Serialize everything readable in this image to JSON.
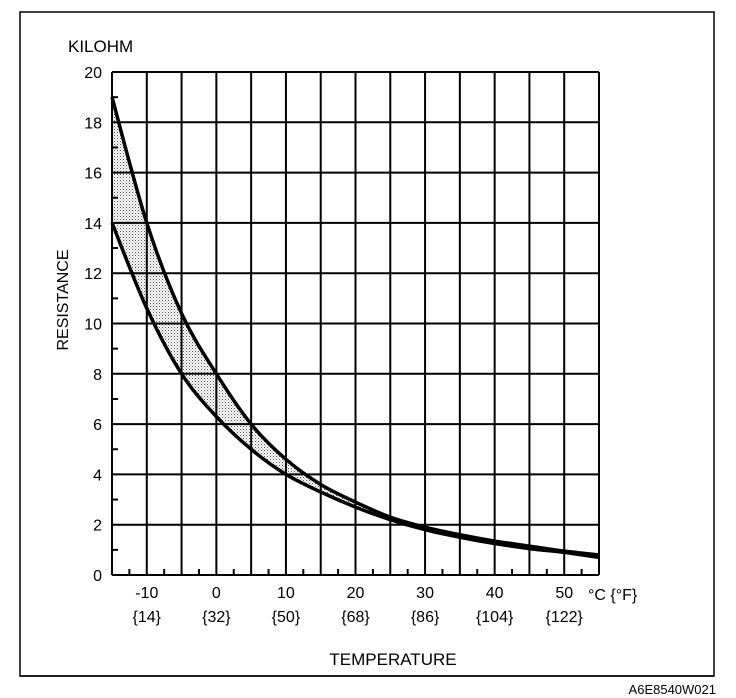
{
  "chart_data": {
    "type": "line",
    "title": "",
    "ylabel": "RESISTANCE",
    "yunit": "KILOHM",
    "xlabel": "TEMPERATURE",
    "xunit": "°C {°F}",
    "xlim": [
      -15,
      55
    ],
    "ylim": [
      0,
      20
    ],
    "grid": true,
    "x_ticks": [
      {
        "c": "-10",
        "f": "{14}"
      },
      {
        "c": "0",
        "f": "{32}"
      },
      {
        "c": "10",
        "f": "{50}"
      },
      {
        "c": "20",
        "f": "{68}"
      },
      {
        "c": "30",
        "f": "{86}"
      },
      {
        "c": "40",
        "f": "{104}"
      },
      {
        "c": "50",
        "f": "{122}"
      }
    ],
    "y_ticks": [
      "0",
      "2",
      "4",
      "6",
      "8",
      "10",
      "12",
      "14",
      "16",
      "18",
      "20"
    ],
    "x": [
      -15,
      -10,
      -5,
      0,
      5,
      10,
      15,
      20,
      25,
      30,
      35,
      40,
      45,
      50,
      55
    ],
    "series": [
      {
        "values": [
          19.0,
          14.0,
          10.4,
          8.0,
          6.0,
          4.6,
          3.6,
          2.9,
          2.3,
          1.9,
          1.6,
          1.35,
          1.15,
          0.95,
          0.8
        ]
      },
      {
        "values": [
          14.0,
          10.6,
          8.0,
          6.3,
          5.0,
          4.0,
          3.3,
          2.7,
          2.2,
          1.8,
          1.5,
          1.25,
          1.05,
          0.9,
          0.7
        ]
      }
    ],
    "shaded_band_between_series": true
  },
  "figure_code": "A6E8540W021"
}
